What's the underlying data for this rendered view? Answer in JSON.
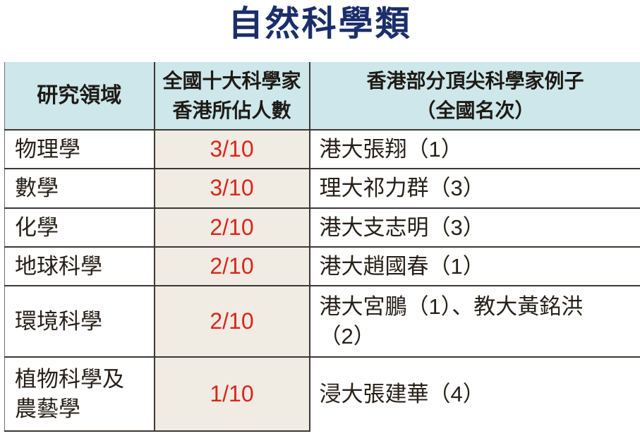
{
  "colors": {
    "title_navy": "#1b2e6b",
    "header_bg": "#cde7ea",
    "count_column_bg": "#f0ece3",
    "count_red": "#da251c",
    "border_dark": "#3c3733"
  },
  "chart_data": {
    "type": "table",
    "title": "自然科學類",
    "columns": [
      "研究領域",
      "全國十大科學家\n香港所佔人數",
      "香港部分頂尖科學家例子\n（全國名次）"
    ],
    "rows": [
      {
        "field": "物理學",
        "count": "3/10",
        "examples": "港大張翔（1）"
      },
      {
        "field": "數學",
        "count": "3/10",
        "examples": "理大祁力群（3）"
      },
      {
        "field": "化學",
        "count": "2/10",
        "examples": "港大支志明（3）"
      },
      {
        "field": "地球科學",
        "count": "2/10",
        "examples": "港大趙國春（1）"
      },
      {
        "field": "環境科學",
        "count": "2/10",
        "examples": "港大宮鵬（1）、教大黃銘洪\n（2）"
      },
      {
        "field": "植物科學及\n農藝學",
        "count": "1/10",
        "examples": "浸大張建華（4）"
      }
    ]
  }
}
